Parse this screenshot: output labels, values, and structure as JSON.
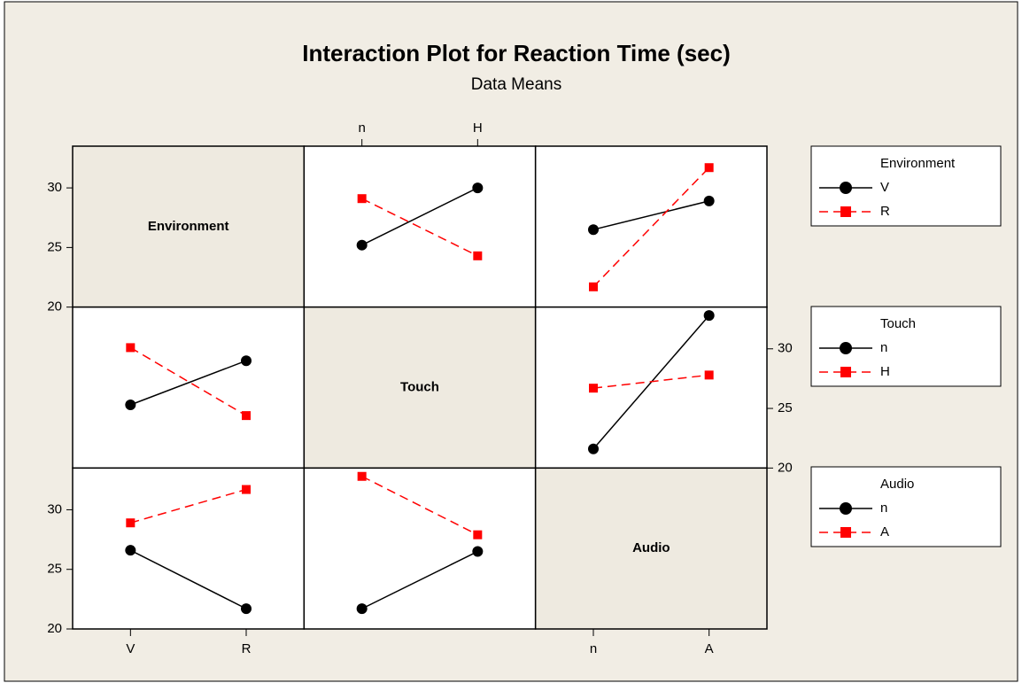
{
  "chart_data": {
    "type": "interaction",
    "title": "Interaction Plot for Reaction Time (sec)",
    "subtitle": "Data Means",
    "factors": [
      {
        "name": "Environment",
        "levels": [
          "V",
          "R"
        ]
      },
      {
        "name": "Touch",
        "levels": [
          "n",
          "H"
        ]
      },
      {
        "name": "Audio",
        "levels": [
          "n",
          "A"
        ]
      }
    ],
    "ylim": [
      20,
      33.5
    ],
    "yticks": [
      20,
      25,
      30
    ],
    "panels": [
      {
        "series": [
          {
            "name": "V",
            "color": "#000000",
            "values": [
              25.2,
              30.0
            ]
          },
          {
            "name": "R",
            "color": "#ff0000",
            "values": [
              29.1,
              24.3
            ]
          }
        ]
      },
      {
        "series": [
          {
            "name": "V",
            "color": "#000000",
            "values": [
              26.5,
              28.9
            ]
          },
          {
            "name": "R",
            "color": "#ff0000",
            "values": [
              21.7,
              31.7
            ]
          }
        ]
      },
      {
        "series": [
          {
            "name": "n",
            "color": "#000000",
            "values": [
              25.3,
              29.0
            ]
          },
          {
            "name": "H",
            "color": "#ff0000",
            "values": [
              30.1,
              24.4
            ]
          }
        ]
      },
      {
        "series": [
          {
            "name": "n",
            "color": "#000000",
            "values": [
              21.6,
              32.8
            ]
          },
          {
            "name": "H",
            "color": "#ff0000",
            "values": [
              26.7,
              27.8
            ]
          }
        ]
      },
      {
        "series": [
          {
            "name": "n",
            "color": "#000000",
            "values": [
              26.6,
              21.7
            ]
          },
          {
            "name": "A",
            "color": "#ff0000",
            "values": [
              28.9,
              31.7
            ]
          }
        ]
      },
      {
        "series": [
          {
            "name": "n",
            "color": "#000000",
            "values": [
              21.7,
              26.5
            ]
          },
          {
            "name": "A",
            "color": "#ff0000",
            "values": [
              32.8,
              27.9
            ]
          }
        ]
      }
    ]
  }
}
